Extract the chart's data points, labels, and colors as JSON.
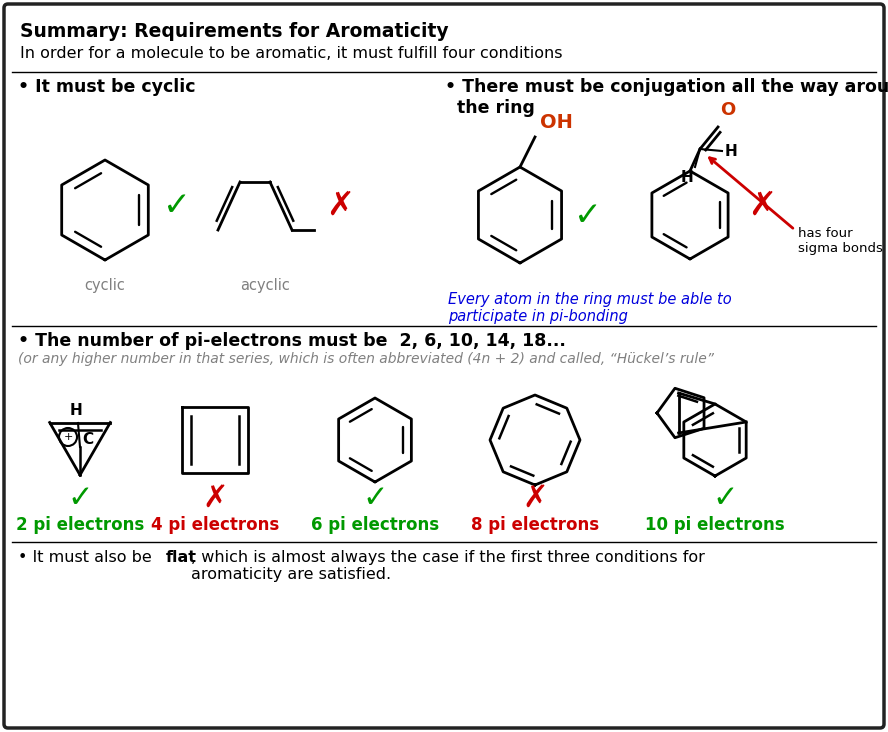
{
  "title": "Summary: Requirements for Aromaticity",
  "subtitle": "In order for a molecule to be aromatic, it must fulfill four conditions",
  "bg_color": "#ffffff",
  "border_color": "#222222",
  "section1_header": "• It must be cyclic",
  "section2_header": "• There must be conjugation all the way around\n  the ring",
  "section3_header_black": "• The number of pi-electrons must be  2, 6, 10, 14, 18...",
  "section3_header_gray": "(or any higher number in that series, which is often abbreviated (4n + 2) and called, “Hückel’s rule”",
  "section4_text": "• It must also be ",
  "section4_bold": "flat",
  "section4_rest": ", which is almost always the case if the first three conditions for\naromaticity are satisfied.",
  "blue_italic_text": "Every atom in the ring must be able to\nparticipate in pi-bonding",
  "has_four_sigma_bonds": "has four\nsigma bonds",
  "label_cyclic": "cyclic",
  "label_acyclic": "acyclic",
  "pi_labels": [
    {
      "text": "2 pi electrons",
      "color": "#009900"
    },
    {
      "text": "4 pi electrons",
      "color": "#cc0000"
    },
    {
      "text": "6 pi electrons",
      "color": "#009900"
    },
    {
      "text": "8 pi electrons",
      "color": "#cc0000"
    },
    {
      "text": "10 pi electrons",
      "color": "#009900"
    }
  ],
  "check_color": "#009900",
  "cross_color": "#cc0000",
  "title_fontsize": 13.5,
  "body_fontsize": 11.5,
  "header_fontsize": 12.5
}
